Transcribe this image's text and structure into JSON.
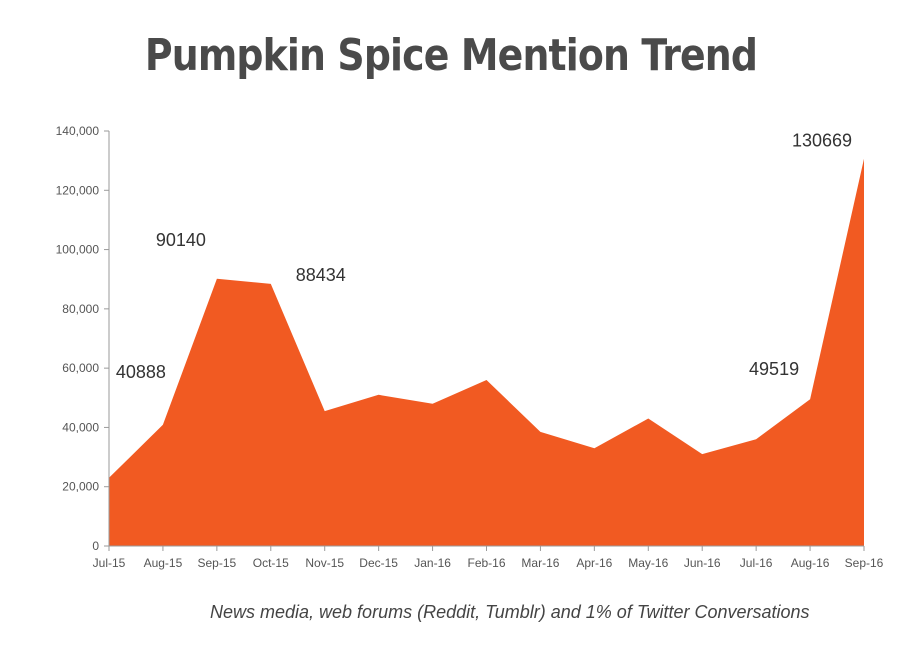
{
  "colors": {
    "area": "#f15a22",
    "axis": "#9a9a9a",
    "text": "#4a4a4a"
  },
  "caption": "News media, web forums (Reddit, Tumblr) and 1% of Twitter Conversations",
  "chart_data": {
    "type": "area",
    "title": "Pumpkin Spice Mention Trend",
    "xlabel": "",
    "ylabel": "",
    "categories": [
      "Jul-15",
      "Aug-15",
      "Sep-15",
      "Oct-15",
      "Nov-15",
      "Dec-15",
      "Jan-16",
      "Feb-16",
      "Mar-16",
      "Apr-16",
      "May-16",
      "Jun-16",
      "Jul-16",
      "Aug-16",
      "Sep-16"
    ],
    "values": [
      23000,
      40888,
      90140,
      88434,
      45500,
      51000,
      48000,
      56000,
      38500,
      33000,
      43000,
      31000,
      36000,
      49519,
      130669
    ],
    "ylim": [
      0,
      140000
    ],
    "yticks": [
      "0",
      "20,000",
      "40,000",
      "60,000",
      "80,000",
      "100,000",
      "120,000",
      "140,000"
    ],
    "data_labels": [
      {
        "category": "Aug-15",
        "text": "40888"
      },
      {
        "category": "Sep-15",
        "text": "90140"
      },
      {
        "category": "Oct-15",
        "text": "88434"
      },
      {
        "category": "Aug-16",
        "text": "49519"
      },
      {
        "category": "Sep-16",
        "text": "130669"
      }
    ],
    "grid": false,
    "legend": "none"
  }
}
